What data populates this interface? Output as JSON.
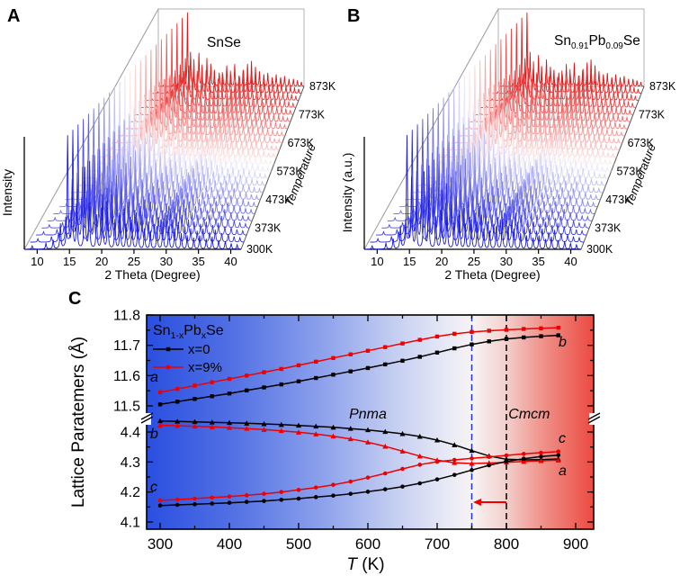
{
  "figure": {
    "panels": [
      {
        "letter": "A"
      },
      {
        "letter": "B"
      },
      {
        "letter": "C"
      }
    ]
  },
  "colors": {
    "series_black": "#000000",
    "series_red": "#ee0000",
    "waterfall_blue": "#1a1ae0",
    "waterfall_red": "#e81010",
    "dash_blue": "#2233ee",
    "dash_black": "#000000",
    "arrow_red": "#ee0000",
    "frame_gray": "#b0b0b0",
    "grad_stops": [
      [
        "0%",
        "#2a4fe0"
      ],
      [
        "20%",
        "#5472e4"
      ],
      [
        "40%",
        "#8fa3ec"
      ],
      [
        "55%",
        "#c3cdf1"
      ],
      [
        "67%",
        "#e7e9f6"
      ],
      [
        "73%",
        "#f7f3f3"
      ],
      [
        "80%",
        "#f3d2cf"
      ],
      [
        "88%",
        "#ef968e"
      ],
      [
        "100%",
        "#ec4a41"
      ]
    ]
  },
  "chart_data": [
    {
      "id": "A",
      "type": "waterfall-3d-xrd",
      "title_segments": [
        {
          "t": "SnSe"
        }
      ],
      "xlabel": "2 Theta (Degree)",
      "ylabel": "Intensity",
      "zlabel": "Temperature",
      "x_range": [
        8,
        41
      ],
      "x_ticks": [
        "10",
        "15",
        "20",
        "25",
        "30",
        "35",
        "40"
      ],
      "temperatures_K": [
        300,
        325,
        350,
        375,
        400,
        425,
        450,
        475,
        500,
        525,
        550,
        575,
        600,
        625,
        650,
        675,
        700,
        725,
        750,
        775,
        800,
        825,
        850,
        875
      ],
      "temp_labels": [
        "300K",
        "373K",
        "473K",
        "573K",
        "673K",
        "773K",
        "873K"
      ],
      "temp_label_indices": [
        0,
        3,
        7,
        11,
        15,
        19,
        23
      ],
      "peaks_2theta_Ilow_Ihigh": [
        [
          9.2,
          0.03,
          0.02
        ],
        [
          11.3,
          0.05,
          0.03
        ],
        [
          12.4,
          0.08,
          0.05
        ],
        [
          13.5,
          0.22,
          0.12
        ],
        [
          14.6,
          1.0,
          1.0
        ],
        [
          15.3,
          0.6,
          0.45
        ],
        [
          16.0,
          0.38,
          0.22
        ],
        [
          17.2,
          0.72,
          0.45
        ],
        [
          17.9,
          0.4,
          0.25
        ],
        [
          19.0,
          0.3,
          0.38
        ],
        [
          19.9,
          0.48,
          0.3
        ],
        [
          20.7,
          0.36,
          0.22
        ],
        [
          21.8,
          0.26,
          0.18
        ],
        [
          22.6,
          0.3,
          0.16
        ],
        [
          23.5,
          0.22,
          0.28
        ],
        [
          24.4,
          0.26,
          0.16
        ],
        [
          25.3,
          0.24,
          0.3
        ],
        [
          26.3,
          0.18,
          0.14
        ],
        [
          27.2,
          0.16,
          0.22
        ],
        [
          28.2,
          0.2,
          0.3
        ],
        [
          29.1,
          0.24,
          0.34
        ],
        [
          30.0,
          0.2,
          0.26
        ],
        [
          30.9,
          0.18,
          0.2
        ],
        [
          31.9,
          0.14,
          0.16
        ],
        [
          32.8,
          0.12,
          0.18
        ],
        [
          33.8,
          0.1,
          0.12
        ],
        [
          34.7,
          0.12,
          0.16
        ],
        [
          35.7,
          0.09,
          0.12
        ],
        [
          36.6,
          0.11,
          0.14
        ],
        [
          37.6,
          0.08,
          0.1
        ],
        [
          38.6,
          0.07,
          0.1
        ],
        [
          39.5,
          0.05,
          0.08
        ],
        [
          40.4,
          0.04,
          0.06
        ]
      ]
    },
    {
      "id": "B",
      "type": "waterfall-3d-xrd",
      "title_segments": [
        {
          "t": "Sn"
        },
        {
          "t": "0.91",
          "sub": true
        },
        {
          "t": "Pb"
        },
        {
          "t": "0.09",
          "sub": true
        },
        {
          "t": "Se"
        }
      ],
      "xlabel": "2 Theta (Degree)",
      "ylabel": "Intensity (a.u.)",
      "zlabel": "Temperature",
      "x_range": [
        8,
        41
      ],
      "x_ticks": [
        "10",
        "15",
        "20",
        "25",
        "30",
        "35",
        "40"
      ],
      "temperatures_K": [
        300,
        325,
        350,
        375,
        400,
        425,
        450,
        475,
        500,
        525,
        550,
        575,
        600,
        625,
        650,
        675,
        700,
        725,
        750,
        775,
        800,
        825,
        850,
        875
      ],
      "temp_labels": [
        "300K",
        "373K",
        "473K",
        "573K",
        "673K",
        "773K",
        "873K"
      ],
      "temp_label_indices": [
        0,
        3,
        7,
        11,
        15,
        19,
        23
      ],
      "peaks_2theta_Ilow_Ihigh": [
        [
          9.2,
          0.03,
          0.02
        ],
        [
          11.3,
          0.05,
          0.03
        ],
        [
          12.4,
          0.09,
          0.05
        ],
        [
          13.5,
          0.2,
          0.12
        ],
        [
          14.5,
          1.0,
          1.0
        ],
        [
          15.2,
          0.62,
          0.45
        ],
        [
          15.9,
          0.36,
          0.22
        ],
        [
          17.1,
          0.68,
          0.42
        ],
        [
          17.8,
          0.42,
          0.25
        ],
        [
          18.9,
          0.28,
          0.36
        ],
        [
          19.8,
          0.52,
          0.26
        ],
        [
          20.6,
          0.34,
          0.22
        ],
        [
          21.7,
          0.28,
          0.18
        ],
        [
          22.5,
          0.3,
          0.16
        ],
        [
          23.4,
          0.22,
          0.3
        ],
        [
          24.3,
          0.26,
          0.16
        ],
        [
          25.2,
          0.24,
          0.32
        ],
        [
          26.2,
          0.18,
          0.14
        ],
        [
          27.1,
          0.16,
          0.22
        ],
        [
          28.1,
          0.2,
          0.32
        ],
        [
          29.0,
          0.26,
          0.36
        ],
        [
          29.9,
          0.2,
          0.28
        ],
        [
          30.8,
          0.18,
          0.2
        ],
        [
          31.8,
          0.14,
          0.16
        ],
        [
          32.7,
          0.12,
          0.18
        ],
        [
          33.7,
          0.1,
          0.12
        ],
        [
          34.6,
          0.12,
          0.16
        ],
        [
          35.6,
          0.09,
          0.12
        ],
        [
          36.5,
          0.11,
          0.14
        ],
        [
          37.5,
          0.08,
          0.1
        ],
        [
          38.5,
          0.07,
          0.1
        ],
        [
          39.4,
          0.05,
          0.08
        ],
        [
          40.3,
          0.04,
          0.06
        ]
      ]
    },
    {
      "id": "C",
      "type": "line",
      "xlabel_parts": [
        {
          "t": "T",
          "italic": true
        },
        {
          "t": " (K)"
        }
      ],
      "ylabel": "Lattice Paratemers (Å)",
      "x_ticks": [
        "300",
        "400",
        "500",
        "600",
        "700",
        "800",
        "900"
      ],
      "y_ticks_upper": [
        "11.8",
        "11.7",
        "11.6",
        "11.5"
      ],
      "y_ticks_lower": [
        "4.4",
        "4.3",
        "4.2",
        "4.1"
      ],
      "y_axis_break": true,
      "x": [
        300,
        325,
        350,
        375,
        400,
        425,
        450,
        475,
        500,
        525,
        550,
        575,
        600,
        625,
        650,
        675,
        700,
        725,
        750,
        775,
        800,
        825,
        850,
        875
      ],
      "series": [
        {
          "param": "a",
          "sample": "x=0",
          "marker": "square",
          "color_key": "series_black",
          "segment": "upper",
          "values": [
            11.505,
            11.514,
            11.523,
            11.532,
            11.541,
            11.551,
            11.561,
            11.571,
            11.581,
            11.592,
            11.603,
            11.614,
            11.625,
            11.637,
            11.649,
            11.662,
            11.676,
            11.69,
            11.703,
            11.713,
            11.721,
            11.726,
            11.73,
            11.733
          ]
        },
        {
          "param": "a",
          "sample": "x=9%",
          "marker": "square",
          "color_key": "series_red",
          "segment": "upper",
          "values": [
            11.545,
            11.556,
            11.567,
            11.578,
            11.589,
            11.6,
            11.611,
            11.622,
            11.634,
            11.646,
            11.658,
            11.67,
            11.682,
            11.694,
            11.706,
            11.718,
            11.729,
            11.738,
            11.744,
            11.748,
            11.751,
            11.754,
            11.756,
            11.758
          ]
        },
        {
          "param": "b",
          "sample": "x=0",
          "marker": "triangle",
          "color_key": "series_black",
          "segment": "lower",
          "values": [
            4.437,
            4.4355,
            4.434,
            4.4325,
            4.431,
            4.429,
            4.427,
            4.4245,
            4.422,
            4.419,
            4.4155,
            4.4115,
            4.407,
            4.401,
            4.394,
            4.385,
            4.373,
            4.357,
            4.338,
            4.32,
            4.309,
            4.307,
            4.308,
            4.31
          ]
        },
        {
          "param": "b",
          "sample": "x=9%",
          "marker": "triangle",
          "color_key": "series_red",
          "segment": "lower",
          "values": [
            4.4225,
            4.421,
            4.419,
            4.417,
            4.4145,
            4.4115,
            4.408,
            4.404,
            4.399,
            4.393,
            4.386,
            4.377,
            4.366,
            4.352,
            4.336,
            4.3195,
            4.306,
            4.2975,
            4.295,
            4.2965,
            4.299,
            4.3015,
            4.304,
            4.306
          ]
        },
        {
          "param": "c",
          "sample": "x=0",
          "marker": "circle",
          "color_key": "series_black",
          "segment": "lower",
          "values": [
            4.155,
            4.157,
            4.159,
            4.1615,
            4.164,
            4.167,
            4.17,
            4.174,
            4.178,
            4.183,
            4.188,
            4.194,
            4.201,
            4.209,
            4.218,
            4.229,
            4.242,
            4.257,
            4.273,
            4.289,
            4.302,
            4.311,
            4.318,
            4.323
          ]
        },
        {
          "param": "c",
          "sample": "x=9%",
          "marker": "circle",
          "color_key": "series_red",
          "segment": "lower",
          "values": [
            4.172,
            4.175,
            4.178,
            4.1815,
            4.185,
            4.189,
            4.194,
            4.2,
            4.207,
            4.215,
            4.224,
            4.235,
            4.248,
            4.262,
            4.277,
            4.291,
            4.301,
            4.307,
            4.312,
            4.317,
            4.322,
            4.327,
            4.331,
            4.335
          ]
        }
      ],
      "legend": {
        "title_segments": [
          {
            "t": "Sn"
          },
          {
            "t": "1-x",
            "sub": true
          },
          {
            "t": "Pb"
          },
          {
            "t": "x",
            "sub": true
          },
          {
            "t": "Se"
          }
        ],
        "entries": [
          {
            "label": "x=0",
            "color_key": "series_black"
          },
          {
            "label": "x=9%",
            "color_key": "series_red"
          }
        ]
      },
      "phase_labels": [
        {
          "text": "Pnma",
          "T": 600
        },
        {
          "text": "Cmcm",
          "T": 833
        }
      ],
      "dashed_lines": [
        {
          "T": 750,
          "color_key": "dash_blue"
        },
        {
          "T": 800,
          "color_key": "dash_black"
        }
      ],
      "transition_arrow": {
        "from_T": 800,
        "to_T": 752,
        "y_value": 4.166,
        "color_key": "arrow_red"
      },
      "curve_labels_left": [
        "a",
        "b",
        "c"
      ],
      "curve_labels_right": [
        "b",
        "c",
        "a"
      ]
    }
  ]
}
